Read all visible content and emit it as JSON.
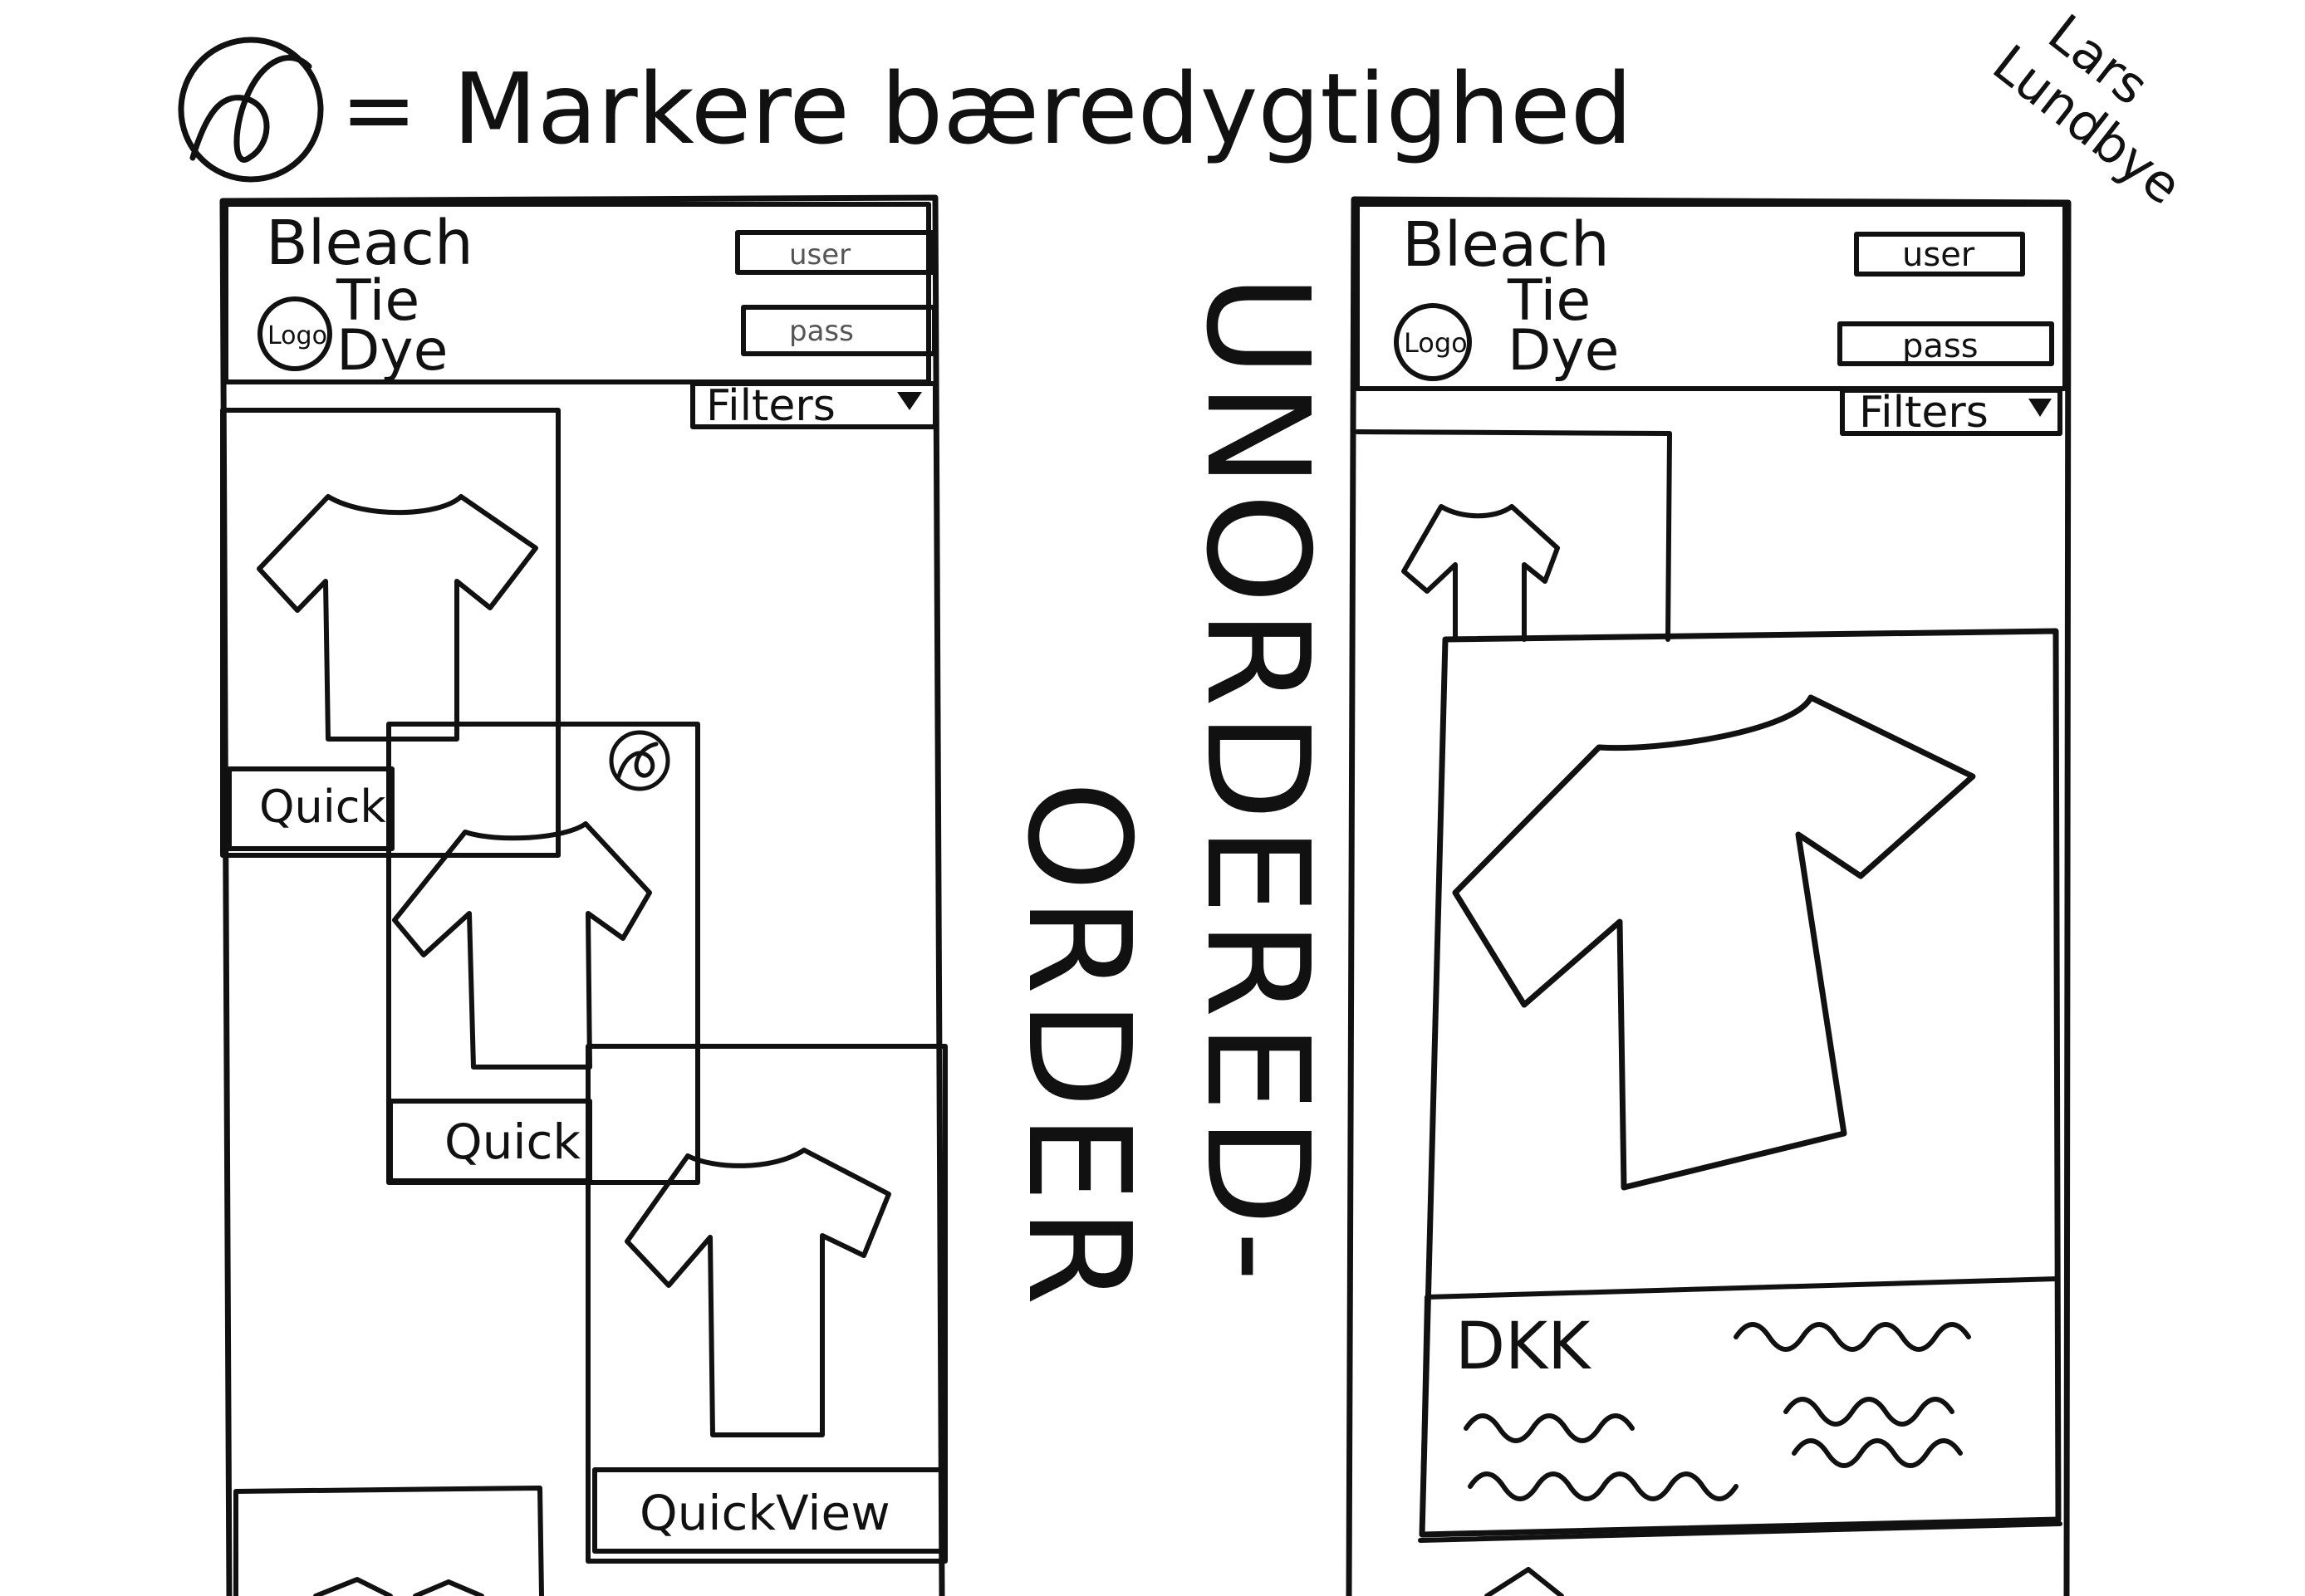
{
  "legend": {
    "icon": "recycle-icon",
    "equals": "=",
    "label": "Markere bæredygtighed"
  },
  "author": [
    "Lars",
    "Lundbye"
  ],
  "divider_text": {
    "unordered": "UNORDERED-",
    "order": "ORDER"
  },
  "mockup_left": {
    "brand": [
      "Bleach",
      "Tie",
      "Dye"
    ],
    "logo": "Logo",
    "user_field": "user",
    "pass_field": "pass",
    "filters_label": "Filters",
    "cards": [
      {
        "button": "Quick"
      },
      {
        "button": "Quick",
        "badge": "recycle-icon"
      },
      {
        "button": "QuickView"
      }
    ]
  },
  "mockup_right": {
    "brand": [
      "Bleach",
      "Tie",
      "Dye"
    ],
    "logo": "Logo",
    "user_field": "user",
    "pass_field": "pass",
    "filters_label": "Filters",
    "detail_price": "DKK"
  },
  "colors": {
    "ink": "#111111",
    "paper": "#ffffff"
  }
}
